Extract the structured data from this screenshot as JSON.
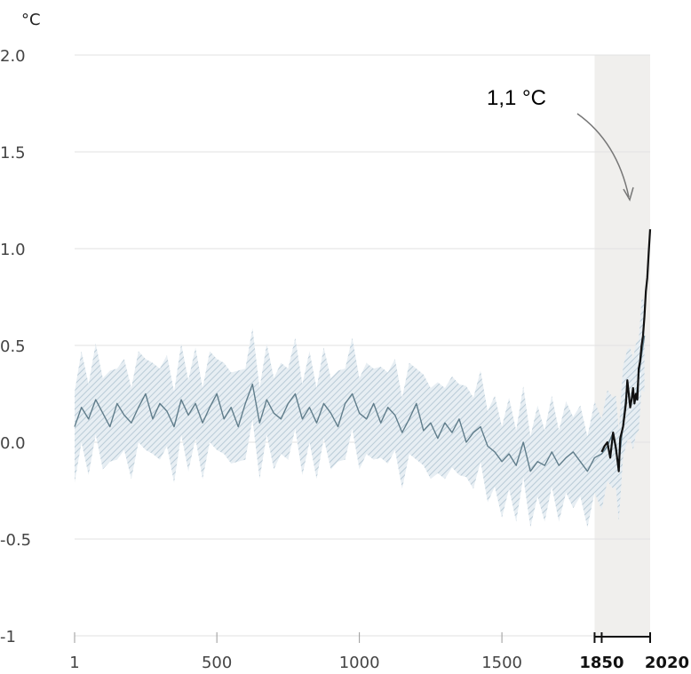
{
  "chart_data": {
    "type": "line",
    "ylabel": "°C",
    "ylim": [
      -1,
      2
    ],
    "yticks": [
      {
        "value": 2.0,
        "label": "2.0"
      },
      {
        "value": 1.5,
        "label": "1.5"
      },
      {
        "value": 1.0,
        "label": "1.0"
      },
      {
        "value": 0.5,
        "label": "0.5"
      },
      {
        "value": 0.0,
        "label": "0.0"
      },
      {
        "value": -0.5,
        "label": "-0.5"
      },
      {
        "value": -1,
        "label": "-1"
      }
    ],
    "xticks": [
      {
        "value": 1,
        "label": "1",
        "bold": false
      },
      {
        "value": 500,
        "label": "500",
        "bold": false
      },
      {
        "value": 1000,
        "label": "1000",
        "bold": false
      },
      {
        "value": 1500,
        "label": "1500",
        "bold": false
      },
      {
        "value": 1850,
        "label": "1850",
        "bold": true
      },
      {
        "value": 2020,
        "label": "2020",
        "bold": true
      }
    ],
    "grid": true,
    "highlight_period": [
      1850,
      2020
    ],
    "annotation": {
      "text": "1,1 °C",
      "x": 2020,
      "y": 1.1
    },
    "series": [
      {
        "color": "#607d8b",
        "style": "reconstruction",
        "points": [
          [
            1,
            0.08
          ],
          [
            25,
            0.18
          ],
          [
            50,
            0.12
          ],
          [
            75,
            0.22
          ],
          [
            100,
            0.15
          ],
          [
            125,
            0.08
          ],
          [
            150,
            0.2
          ],
          [
            175,
            0.14
          ],
          [
            200,
            0.1
          ],
          [
            225,
            0.18
          ],
          [
            250,
            0.25
          ],
          [
            275,
            0.12
          ],
          [
            300,
            0.2
          ],
          [
            325,
            0.16
          ],
          [
            350,
            0.08
          ],
          [
            375,
            0.22
          ],
          [
            400,
            0.14
          ],
          [
            425,
            0.2
          ],
          [
            450,
            0.1
          ],
          [
            475,
            0.18
          ],
          [
            500,
            0.25
          ],
          [
            525,
            0.12
          ],
          [
            550,
            0.18
          ],
          [
            575,
            0.08
          ],
          [
            600,
            0.2
          ],
          [
            625,
            0.3
          ],
          [
            650,
            0.1
          ],
          [
            675,
            0.22
          ],
          [
            700,
            0.15
          ],
          [
            725,
            0.12
          ],
          [
            750,
            0.2
          ],
          [
            775,
            0.25
          ],
          [
            800,
            0.12
          ],
          [
            825,
            0.18
          ],
          [
            850,
            0.1
          ],
          [
            875,
            0.2
          ],
          [
            900,
            0.15
          ],
          [
            925,
            0.08
          ],
          [
            950,
            0.2
          ],
          [
            975,
            0.25
          ],
          [
            1000,
            0.15
          ],
          [
            1025,
            0.12
          ],
          [
            1050,
            0.2
          ],
          [
            1075,
            0.1
          ],
          [
            1100,
            0.18
          ],
          [
            1125,
            0.14
          ],
          [
            1150,
            0.05
          ],
          [
            1175,
            0.12
          ],
          [
            1200,
            0.2
          ],
          [
            1225,
            0.06
          ],
          [
            1250,
            0.1
          ],
          [
            1275,
            0.02
          ],
          [
            1300,
            0.1
          ],
          [
            1325,
            0.05
          ],
          [
            1350,
            0.12
          ],
          [
            1375,
            0.0
          ],
          [
            1400,
            0.05
          ],
          [
            1425,
            0.08
          ],
          [
            1450,
            -0.02
          ],
          [
            1475,
            -0.05
          ],
          [
            1500,
            -0.1
          ],
          [
            1525,
            -0.06
          ],
          [
            1550,
            -0.12
          ],
          [
            1575,
            0.0
          ],
          [
            1600,
            -0.15
          ],
          [
            1625,
            -0.1
          ],
          [
            1650,
            -0.12
          ],
          [
            1675,
            -0.05
          ],
          [
            1700,
            -0.12
          ],
          [
            1725,
            -0.08
          ],
          [
            1750,
            -0.05
          ],
          [
            1775,
            -0.1
          ],
          [
            1800,
            -0.15
          ],
          [
            1825,
            -0.08
          ],
          [
            1850,
            -0.06
          ],
          [
            1870,
            -0.02
          ],
          [
            1890,
            0.05
          ],
          [
            1900,
            -0.05
          ],
          [
            1910,
            -0.12
          ],
          [
            1925,
            0.1
          ],
          [
            1940,
            0.3
          ],
          [
            1950,
            0.2
          ],
          [
            1960,
            0.25
          ],
          [
            1970,
            0.22
          ],
          [
            1980,
            0.35
          ],
          [
            1990,
            0.45
          ],
          [
            2000,
            0.55
          ]
        ],
        "band_width": 0.22
      },
      {
        "color": "#111111",
        "style": "observed",
        "points": [
          [
            1850,
            -0.05
          ],
          [
            1860,
            -0.02
          ],
          [
            1870,
            0.0
          ],
          [
            1880,
            -0.08
          ],
          [
            1890,
            0.05
          ],
          [
            1900,
            -0.03
          ],
          [
            1910,
            -0.15
          ],
          [
            1915,
            0.02
          ],
          [
            1925,
            0.08
          ],
          [
            1935,
            0.2
          ],
          [
            1940,
            0.32
          ],
          [
            1945,
            0.25
          ],
          [
            1950,
            0.18
          ],
          [
            1955,
            0.22
          ],
          [
            1960,
            0.28
          ],
          [
            1965,
            0.2
          ],
          [
            1970,
            0.25
          ],
          [
            1975,
            0.22
          ],
          [
            1980,
            0.38
          ],
          [
            1985,
            0.42
          ],
          [
            1990,
            0.5
          ],
          [
            1995,
            0.55
          ],
          [
            2000,
            0.65
          ],
          [
            2005,
            0.78
          ],
          [
            2010,
            0.85
          ],
          [
            2015,
            0.98
          ],
          [
            2020,
            1.1
          ]
        ]
      }
    ]
  }
}
